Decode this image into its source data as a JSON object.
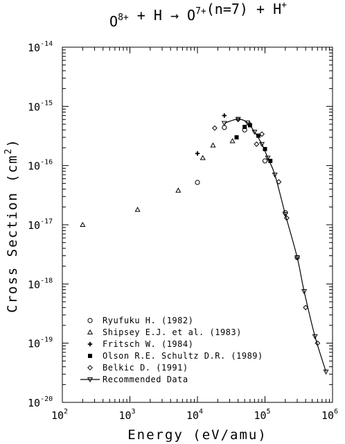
{
  "chart_data": {
    "type": "scatter",
    "title": {
      "parts": [
        {
          "text": "O",
          "sup": "8+"
        },
        {
          "text": " + H → O",
          "sup": "7+"
        },
        {
          "text": "(n=7) + H",
          "sup": "+"
        }
      ]
    },
    "xlabel": "Energy (eV/amu)",
    "ylabel": {
      "main": "Cross Section (cm",
      "sup": "2",
      "end": ")"
    },
    "x_scale": "log",
    "y_scale": "log",
    "xlim": [
      100,
      1000000
    ],
    "ylim": [
      1e-20,
      1e-14
    ],
    "x_ticks": [
      {
        "base": "10",
        "exp": "2",
        "value": 100
      },
      {
        "base": "10",
        "exp": "3",
        "value": 1000
      },
      {
        "base": "10",
        "exp": "4",
        "value": 10000
      },
      {
        "base": "10",
        "exp": "5",
        "value": 100000
      },
      {
        "base": "10",
        "exp": "6",
        "value": 1000000
      }
    ],
    "y_ticks": [
      {
        "base": "10",
        "exp": "-14",
        "value": 1e-14
      },
      {
        "base": "10",
        "exp": "-15",
        "value": 1e-15
      },
      {
        "base": "10",
        "exp": "-16",
        "value": 1e-16
      },
      {
        "base": "10",
        "exp": "-17",
        "value": 1e-17
      },
      {
        "base": "10",
        "exp": "-18",
        "value": 1e-18
      },
      {
        "base": "10",
        "exp": "-19",
        "value": 1e-19
      },
      {
        "base": "10",
        "exp": "-20",
        "value": 1e-20
      }
    ],
    "legend_position": "bottom-left",
    "series": [
      {
        "name": "Ryufuku H. (1982)",
        "marker": "octagon",
        "points": [
          [
            10000,
            5.2e-17
          ],
          [
            25000,
            4.4e-16
          ],
          [
            50000,
            4e-16
          ],
          [
            100000,
            1.2e-16
          ],
          [
            200000,
            1.6e-17
          ],
          [
            300000,
            2.8e-18
          ]
        ]
      },
      {
        "name": "Shipsey E.J. et al. (1983)",
        "marker": "triangle",
        "points": [
          [
            200,
            1e-17
          ],
          [
            1300,
            1.8e-17
          ],
          [
            5200,
            3.8e-17
          ],
          [
            12000,
            1.35e-16
          ],
          [
            17000,
            2.2e-16
          ],
          [
            33000,
            2.6e-16
          ]
        ]
      },
      {
        "name": "Fritsch W. (1984)",
        "marker": "plus-circle",
        "points": [
          [
            10000,
            1.6e-16
          ],
          [
            25000,
            7e-16
          ],
          [
            60000,
            5e-16
          ]
        ]
      },
      {
        "name": "Olson R.E. Schultz D.R. (1989)",
        "marker": "filled-square",
        "points": [
          [
            38000,
            3e-16
          ],
          [
            50000,
            4.5e-16
          ],
          [
            60000,
            4.8e-16
          ],
          [
            80000,
            3.2e-16
          ],
          [
            100000,
            1.9e-16
          ],
          [
            120000,
            1.2e-16
          ]
        ]
      },
      {
        "name": "Belkic D. (1991)",
        "marker": "diamond",
        "points": [
          [
            18000,
            4.3e-16
          ],
          [
            40000,
            6e-16
          ],
          [
            75000,
            2.3e-16
          ],
          [
            90000,
            3.4e-16
          ],
          [
            160000,
            5.3e-17
          ],
          [
            210000,
            1.3e-17
          ],
          [
            400000,
            4e-19
          ],
          [
            600000,
            1e-19
          ]
        ]
      },
      {
        "name": "Recommended Data",
        "marker": "down-triangle-line",
        "line": true,
        "points": [
          [
            25000,
            5.2e-16
          ],
          [
            40000,
            6.1e-16
          ],
          [
            55000,
            5.3e-16
          ],
          [
            70000,
            3.7e-16
          ],
          [
            90000,
            2.3e-16
          ],
          [
            110000,
            1.35e-16
          ],
          [
            140000,
            7e-17
          ],
          [
            200000,
            1.5e-17
          ],
          [
            300000,
            2.8e-18
          ],
          [
            380000,
            7.5e-19
          ],
          [
            550000,
            1.3e-19
          ],
          [
            800000,
            3.3e-20
          ]
        ]
      }
    ]
  }
}
